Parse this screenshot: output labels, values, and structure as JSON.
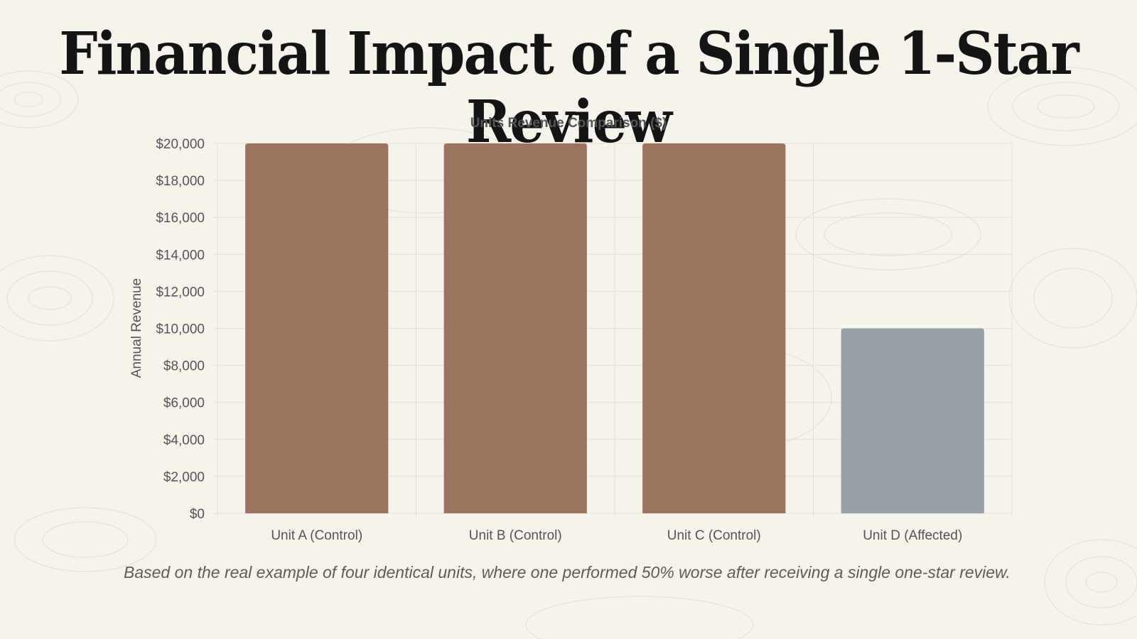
{
  "page": {
    "title": "Financial Impact of a Single 1-Star Review",
    "caption": "Based on the real example of four identical units, where one performed 50% worse after receiving a single one-star review."
  },
  "colors": {
    "background": "#f6f3ec",
    "control_bar": "#9c7360",
    "affected_bar": "#97a0a5",
    "grid": "#e4e0d8",
    "axis_text": "#555555"
  },
  "chart_data": {
    "type": "bar",
    "title": "Units Revenue Comparison ($)",
    "xlabel": "",
    "ylabel": "Annual Revenue",
    "ylim": [
      0,
      20000
    ],
    "yticks": [
      0,
      2000,
      4000,
      6000,
      8000,
      10000,
      12000,
      14000,
      16000,
      18000,
      20000
    ],
    "ytick_labels": [
      "$0",
      "$2,000",
      "$4,000",
      "$6,000",
      "$8,000",
      "$10,000",
      "$12,000",
      "$14,000",
      "$16,000",
      "$18,000",
      "$20,000"
    ],
    "categories": [
      "Unit A (Control)",
      "Unit B (Control)",
      "Unit C (Control)",
      "Unit D (Affected)"
    ],
    "values": [
      20000,
      20000,
      20000,
      10000
    ],
    "bar_colors": [
      "#9c7360",
      "#9c7360",
      "#9c7360",
      "#97a0a5"
    ],
    "grid": true,
    "legend": "none"
  }
}
